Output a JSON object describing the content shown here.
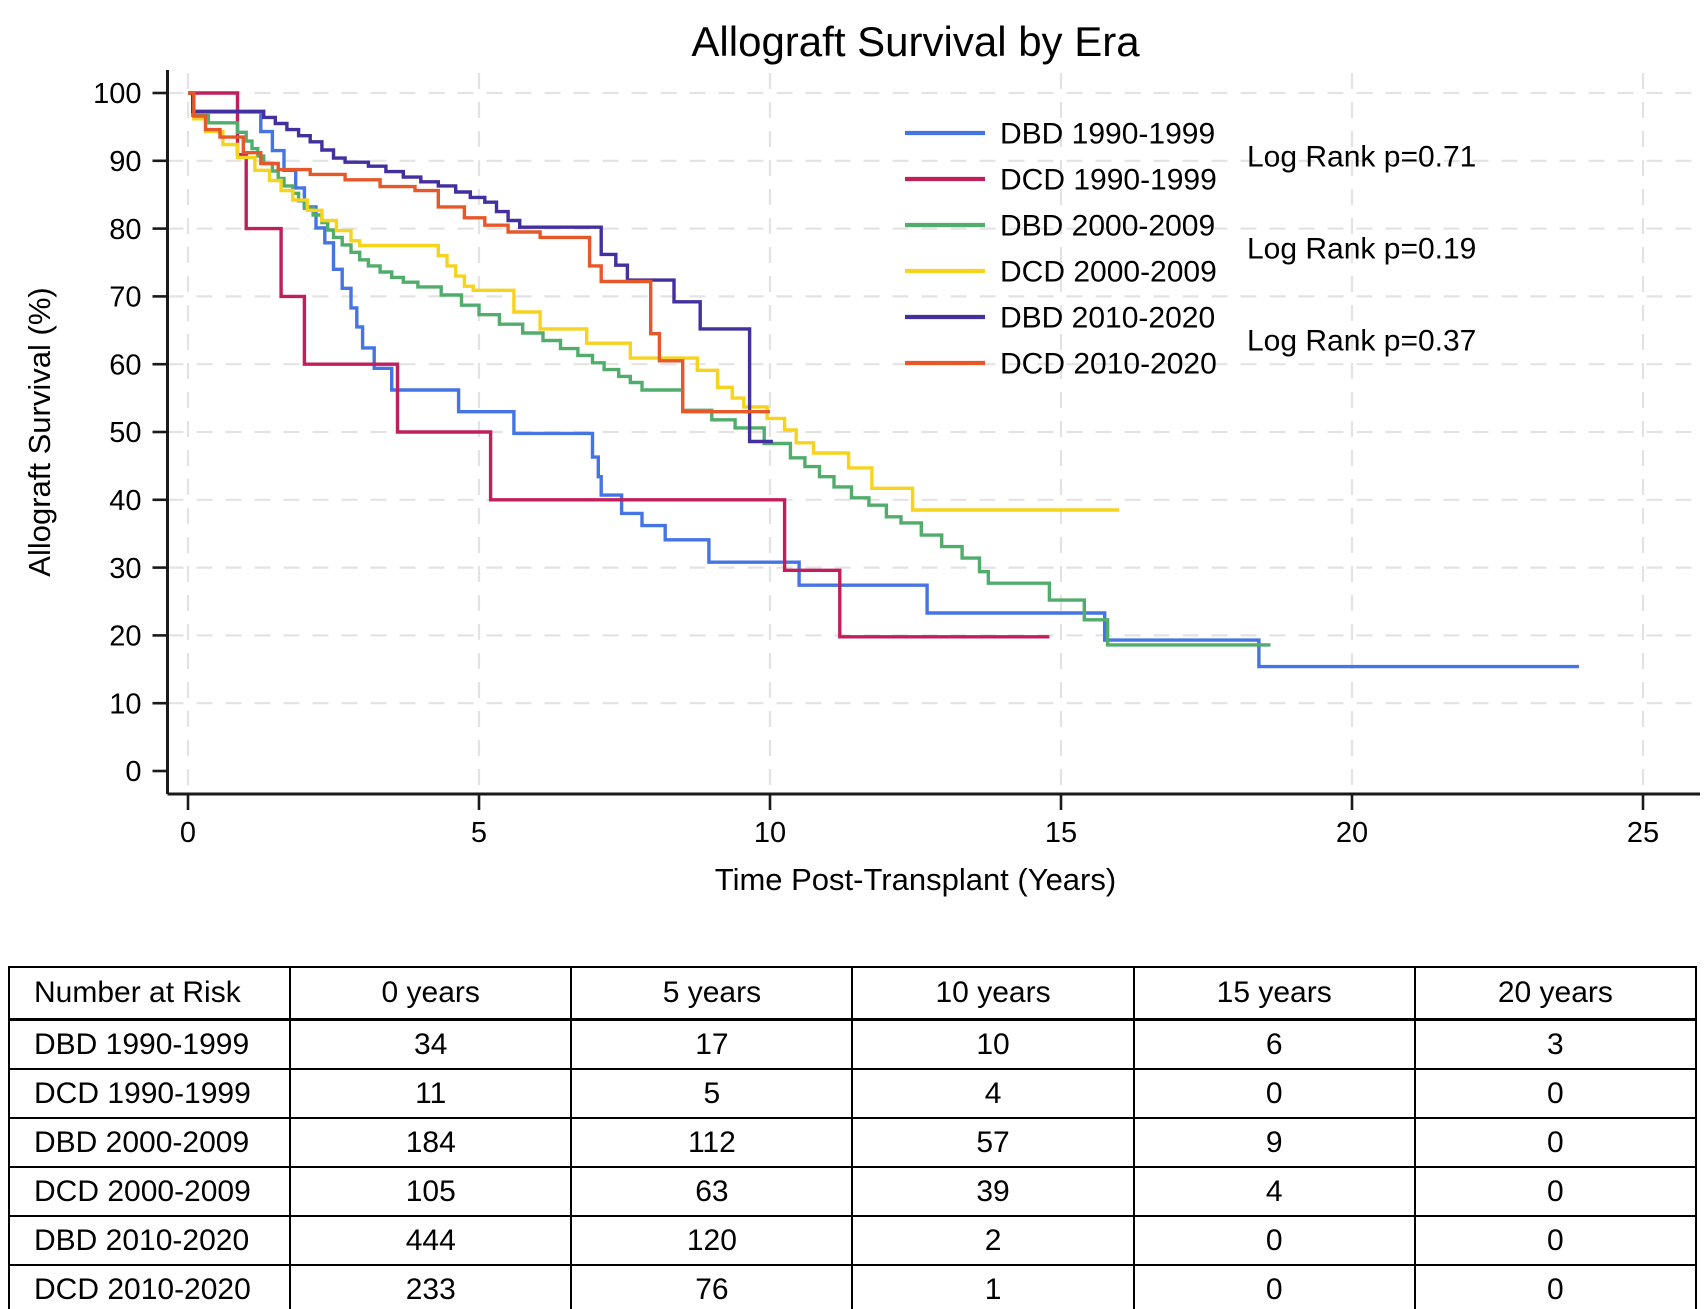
{
  "chart_data": {
    "type": "line",
    "subtype": "kaplan-meier-step",
    "title": "Allograft Survival by Era",
    "xlabel": "Time Post-Transplant (Years)",
    "ylabel": "Allograft Survival (%)",
    "xlim": [
      0,
      25
    ],
    "ylim": [
      0,
      100
    ],
    "xticks": [
      0,
      5,
      10,
      15,
      20,
      25
    ],
    "yticks": [
      0,
      10,
      20,
      30,
      40,
      50,
      60,
      70,
      80,
      90,
      100
    ],
    "grid": "dashed-light-gray",
    "legend_position": "upper-right-inside",
    "annotations": [
      {
        "text": "Log Rank p=0.71",
        "pair": [
          "DBD 1990-1999",
          "DCD 1990-1999"
        ]
      },
      {
        "text": "Log Rank p=0.19",
        "pair": [
          "DBD 2000-2009",
          "DCD 2000-2009"
        ]
      },
      {
        "text": "Log Rank p=0.37",
        "pair": [
          "DBD 2010-2020",
          "DCD 2010-2020"
        ]
      }
    ],
    "series": [
      {
        "name": "DBD 1990-1999",
        "color": "#4574e4",
        "points": [
          [
            0,
            100
          ],
          [
            0.08,
            97.2
          ],
          [
            1.25,
            94.3
          ],
          [
            1.45,
            91.5
          ],
          [
            1.65,
            88.6
          ],
          [
            1.85,
            86.0
          ],
          [
            2.0,
            83.2
          ],
          [
            2.2,
            80.1
          ],
          [
            2.35,
            77.9
          ],
          [
            2.5,
            74.0
          ],
          [
            2.65,
            71.2
          ],
          [
            2.8,
            68.3
          ],
          [
            2.9,
            65.5
          ],
          [
            3.0,
            62.4
          ],
          [
            3.2,
            59.4
          ],
          [
            3.5,
            56.2
          ],
          [
            4.65,
            53.0
          ],
          [
            5.6,
            49.8
          ],
          [
            6.95,
            46.3
          ],
          [
            7.05,
            43.4
          ],
          [
            7.1,
            40.7
          ],
          [
            7.45,
            38.0
          ],
          [
            7.8,
            36.2
          ],
          [
            8.2,
            34.1
          ],
          [
            8.95,
            30.8
          ],
          [
            10.5,
            27.4
          ],
          [
            12.7,
            23.3
          ],
          [
            15.75,
            19.3
          ],
          [
            18.4,
            15.4
          ],
          [
            23.9,
            15.4
          ]
        ]
      },
      {
        "name": "DCD 1990-1999",
        "color": "#c01f5c",
        "points": [
          [
            0,
            100
          ],
          [
            0.85,
            90.9
          ],
          [
            1.0,
            80.0
          ],
          [
            1.6,
            70.0
          ],
          [
            2.0,
            60.0
          ],
          [
            3.6,
            50.0
          ],
          [
            5.2,
            40.0
          ],
          [
            10.25,
            29.6
          ],
          [
            11.2,
            19.8
          ],
          [
            14.8,
            19.8
          ]
        ]
      },
      {
        "name": "DBD 2000-2009",
        "color": "#52ad6d",
        "points": [
          [
            0,
            100
          ],
          [
            0.08,
            96.7
          ],
          [
            0.35,
            95.6
          ],
          [
            0.85,
            94.2
          ],
          [
            1.0,
            92.9
          ],
          [
            1.1,
            91.8
          ],
          [
            1.2,
            90.7
          ],
          [
            1.3,
            89.6
          ],
          [
            1.45,
            88.5
          ],
          [
            1.55,
            87.4
          ],
          [
            1.65,
            86.3
          ],
          [
            1.8,
            85.2
          ],
          [
            1.9,
            84.1
          ],
          [
            2.0,
            83.0
          ],
          [
            2.15,
            82.0
          ],
          [
            2.3,
            80.9
          ],
          [
            2.4,
            79.8
          ],
          [
            2.5,
            78.7
          ],
          [
            2.65,
            77.6
          ],
          [
            2.8,
            76.5
          ],
          [
            2.95,
            75.4
          ],
          [
            3.1,
            74.5
          ],
          [
            3.3,
            73.6
          ],
          [
            3.5,
            72.8
          ],
          [
            3.7,
            72.1
          ],
          [
            3.95,
            71.4
          ],
          [
            4.35,
            70.2
          ],
          [
            4.7,
            68.7
          ],
          [
            5.0,
            67.3
          ],
          [
            5.35,
            65.9
          ],
          [
            5.75,
            64.6
          ],
          [
            6.1,
            63.5
          ],
          [
            6.4,
            62.3
          ],
          [
            6.7,
            61.3
          ],
          [
            6.95,
            60.2
          ],
          [
            7.15,
            59.2
          ],
          [
            7.4,
            58.2
          ],
          [
            7.6,
            57.3
          ],
          [
            7.8,
            56.2
          ],
          [
            8.5,
            53.2
          ],
          [
            9.0,
            51.8
          ],
          [
            9.4,
            50.6
          ],
          [
            9.9,
            48.3
          ],
          [
            10.35,
            46.2
          ],
          [
            10.6,
            44.9
          ],
          [
            10.85,
            43.4
          ],
          [
            11.1,
            41.9
          ],
          [
            11.4,
            40.3
          ],
          [
            11.7,
            39.2
          ],
          [
            12.0,
            37.5
          ],
          [
            12.25,
            36.6
          ],
          [
            12.6,
            34.8
          ],
          [
            12.95,
            33.1
          ],
          [
            13.3,
            31.4
          ],
          [
            13.6,
            29.4
          ],
          [
            13.75,
            27.7
          ],
          [
            14.8,
            25.2
          ],
          [
            15.4,
            22.3
          ],
          [
            15.8,
            18.6
          ],
          [
            18.6,
            18.6
          ]
        ]
      },
      {
        "name": "DCD 2000-2009",
        "color": "#f6d31c",
        "points": [
          [
            0,
            100
          ],
          [
            0.1,
            96.2
          ],
          [
            0.3,
            94.3
          ],
          [
            0.6,
            92.4
          ],
          [
            0.85,
            90.5
          ],
          [
            1.15,
            88.6
          ],
          [
            1.4,
            87.1
          ],
          [
            1.6,
            85.6
          ],
          [
            1.8,
            84.2
          ],
          [
            2.05,
            82.7
          ],
          [
            2.3,
            81.2
          ],
          [
            2.55,
            79.7
          ],
          [
            2.8,
            78.2
          ],
          [
            2.95,
            77.5
          ],
          [
            4.3,
            76.0
          ],
          [
            4.45,
            74.5
          ],
          [
            4.6,
            73.0
          ],
          [
            4.75,
            71.5
          ],
          [
            4.9,
            70.9
          ],
          [
            5.6,
            67.7
          ],
          [
            6.05,
            65.2
          ],
          [
            6.85,
            63.1
          ],
          [
            7.6,
            60.9
          ],
          [
            8.75,
            59.1
          ],
          [
            9.1,
            56.6
          ],
          [
            9.35,
            55.0
          ],
          [
            9.55,
            53.7
          ],
          [
            9.95,
            52.0
          ],
          [
            10.25,
            50.3
          ],
          [
            10.45,
            48.4
          ],
          [
            10.75,
            46.9
          ],
          [
            11.35,
            44.7
          ],
          [
            11.75,
            41.7
          ],
          [
            12.45,
            38.5
          ],
          [
            16.0,
            38.5
          ]
        ]
      },
      {
        "name": "DBD 2010-2020",
        "color": "#432f9f",
        "points": [
          [
            0,
            100
          ],
          [
            0.08,
            97.3
          ],
          [
            1.3,
            96.4
          ],
          [
            1.5,
            95.5
          ],
          [
            1.7,
            94.6
          ],
          [
            1.9,
            93.7
          ],
          [
            2.1,
            92.8
          ],
          [
            2.3,
            91.6
          ],
          [
            2.5,
            90.4
          ],
          [
            2.7,
            89.8
          ],
          [
            3.1,
            89.2
          ],
          [
            3.4,
            88.4
          ],
          [
            3.7,
            87.6
          ],
          [
            4.0,
            86.9
          ],
          [
            4.3,
            86.3
          ],
          [
            4.6,
            85.4
          ],
          [
            4.85,
            84.6
          ],
          [
            5.1,
            83.9
          ],
          [
            5.3,
            82.5
          ],
          [
            5.5,
            81.2
          ],
          [
            5.7,
            80.2
          ],
          [
            7.1,
            76.2
          ],
          [
            7.35,
            74.6
          ],
          [
            7.55,
            72.4
          ],
          [
            8.35,
            69.2
          ],
          [
            8.8,
            65.2
          ],
          [
            9.65,
            48.6
          ],
          [
            10.05,
            48.6
          ]
        ]
      },
      {
        "name": "DCD 2010-2020",
        "color": "#e6582a",
        "points": [
          [
            0,
            100
          ],
          [
            0.1,
            96.6
          ],
          [
            0.3,
            94.6
          ],
          [
            0.55,
            93.5
          ],
          [
            0.95,
            91.2
          ],
          [
            1.25,
            89.6
          ],
          [
            1.55,
            88.7
          ],
          [
            2.1,
            88.0
          ],
          [
            2.7,
            87.2
          ],
          [
            3.3,
            86.2
          ],
          [
            3.9,
            85.6
          ],
          [
            4.3,
            83.2
          ],
          [
            4.75,
            81.6
          ],
          [
            5.1,
            80.5
          ],
          [
            5.5,
            79.5
          ],
          [
            6.05,
            78.7
          ],
          [
            6.9,
            74.5
          ],
          [
            7.1,
            72.2
          ],
          [
            7.95,
            64.5
          ],
          [
            8.1,
            60.5
          ],
          [
            8.5,
            53.0
          ],
          [
            10.0,
            53.0
          ]
        ]
      }
    ]
  },
  "risk_table": {
    "header": [
      "Number at Risk",
      "0 years",
      "5 years",
      "10 years",
      "15 years",
      "20 years"
    ],
    "rows": [
      [
        "DBD 1990-1999",
        "34",
        "17",
        "10",
        "6",
        "3"
      ],
      [
        "DCD 1990-1999",
        "11",
        "5",
        "4",
        "0",
        "0"
      ],
      [
        "DBD 2000-2009",
        "184",
        "112",
        "57",
        "9",
        "0"
      ],
      [
        "DCD 2000-2009",
        "105",
        "63",
        "39",
        "4",
        "0"
      ],
      [
        "DBD 2010-2020",
        "444",
        "120",
        "2",
        "0",
        "0"
      ],
      [
        "DCD 2010-2020",
        "233",
        "76",
        "1",
        "0",
        "0"
      ]
    ]
  }
}
